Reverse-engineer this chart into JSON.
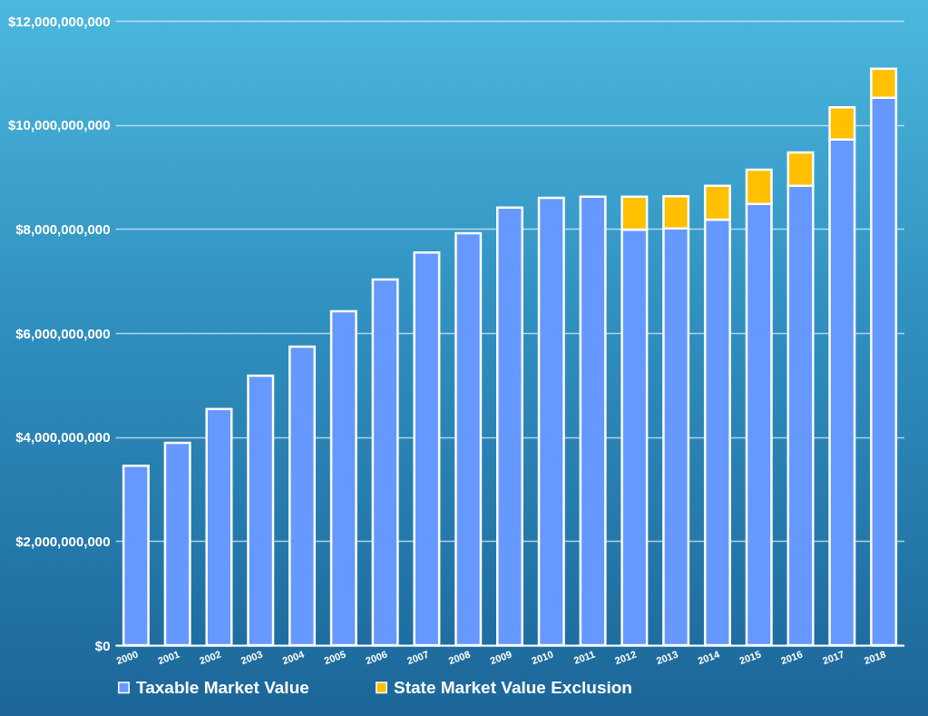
{
  "chart_data": {
    "type": "bar",
    "stacked": true,
    "categories": [
      "2000",
      "2001",
      "2002",
      "2003",
      "2004",
      "2005",
      "2006",
      "2007",
      "2008",
      "2009",
      "2010",
      "2011",
      "2012",
      "2013",
      "2014",
      "2015",
      "2016",
      "2017",
      "2018"
    ],
    "series": [
      {
        "name": "Taxable Market Value",
        "color": "#6699ff",
        "values": [
          3450000000,
          3890000000,
          4540000000,
          5180000000,
          5740000000,
          6420000000,
          7030000000,
          7550000000,
          7920000000,
          8410000000,
          8600000000,
          8620000000,
          7990000000,
          8010000000,
          8180000000,
          8480000000,
          8830000000,
          9720000000,
          10520000000
        ]
      },
      {
        "name": "State Market Value Exclusion",
        "color": "#ffc000",
        "values": [
          null,
          null,
          null,
          null,
          null,
          null,
          null,
          null,
          null,
          null,
          null,
          null,
          630000000,
          620000000,
          650000000,
          660000000,
          640000000,
          620000000,
          560000000
        ]
      }
    ],
    "ylim": [
      0,
      12000000000
    ],
    "yticks": [
      {
        "value": 0,
        "label": "$0"
      },
      {
        "value": 2000000000,
        "label": "$2,000,000,000"
      },
      {
        "value": 4000000000,
        "label": "$4,000,000,000"
      },
      {
        "value": 6000000000,
        "label": "$6,000,000,000"
      },
      {
        "value": 8000000000,
        "label": "$8,000,000,000"
      },
      {
        "value": 10000000000,
        "label": "$10,000,000,000"
      },
      {
        "value": 12000000000,
        "label": "$12,000,000,000"
      }
    ],
    "grid": "y",
    "legend": "bottom"
  }
}
